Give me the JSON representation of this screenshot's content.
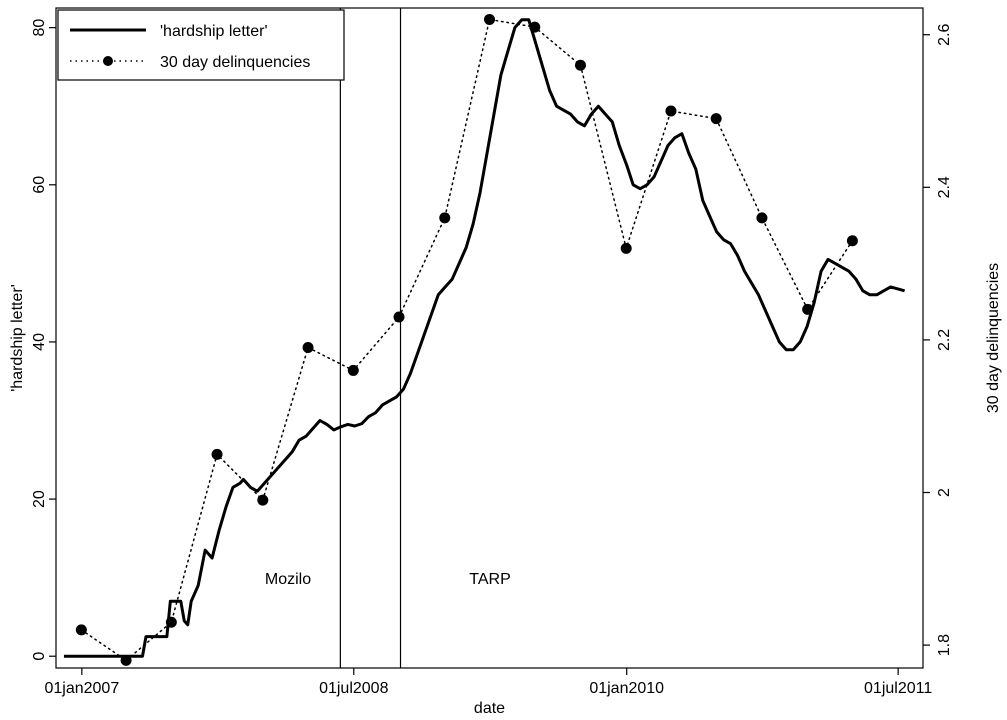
{
  "chart_data": {
    "type": "line",
    "title": "",
    "xlabel": "date",
    "ylabel_left": "'hardship letter'",
    "ylabel_right": "30 day delinquencies",
    "x_ticks": [
      {
        "label": "01jan2007",
        "date": "2007-01-01"
      },
      {
        "label": "01jul2008",
        "date": "2008-07-01"
      },
      {
        "label": "01jan2010",
        "date": "2010-01-01"
      },
      {
        "label": "01jul2011",
        "date": "2011-07-01"
      }
    ],
    "xlim": [
      "2006-11-10",
      "2011-08-20"
    ],
    "ylim_left": [
      -1.5,
      82.5
    ],
    "ylim_right": [
      1.77,
      2.635
    ],
    "y_left_ticks": [
      "0",
      "20",
      "40",
      "60",
      "80"
    ],
    "y_right_ticks": [
      "1.8",
      "2",
      "2.2",
      "2.4",
      "2.6"
    ],
    "legend_position": "top-left",
    "grid": false,
    "annotations": [
      {
        "label": "Mozilo",
        "date": "2008-06-04"
      },
      {
        "label": "TARP",
        "date": "2008-10-03"
      }
    ],
    "series": [
      {
        "name": "'hardship letter'",
        "axis": "left",
        "style": "solid",
        "color": "#000000",
        "points": [
          [
            "2006-11-26",
            0
          ],
          [
            "2007-01-01",
            0
          ],
          [
            "2007-03-01",
            0
          ],
          [
            "2007-05-03",
            0
          ],
          [
            "2007-05-10",
            2.5
          ],
          [
            "2007-06-21",
            2.5
          ],
          [
            "2007-06-28",
            7
          ],
          [
            "2007-07-19",
            7
          ],
          [
            "2007-07-26",
            4.5
          ],
          [
            "2007-08-02",
            4
          ],
          [
            "2007-08-09",
            7
          ],
          [
            "2007-08-23",
            9
          ],
          [
            "2007-09-06",
            13.5
          ],
          [
            "2007-09-20",
            12.5
          ],
          [
            "2007-10-04",
            16
          ],
          [
            "2007-10-18",
            19
          ],
          [
            "2007-11-01",
            21.5
          ],
          [
            "2007-11-15",
            22
          ],
          [
            "2007-11-22",
            22.5
          ],
          [
            "2007-12-06",
            21.5
          ],
          [
            "2007-12-20",
            21
          ],
          [
            "2008-01-03",
            22
          ],
          [
            "2008-01-17",
            23
          ],
          [
            "2008-01-31",
            24
          ],
          [
            "2008-02-14",
            25
          ],
          [
            "2008-02-28",
            26
          ],
          [
            "2008-03-13",
            27.5
          ],
          [
            "2008-03-27",
            28
          ],
          [
            "2008-04-10",
            29
          ],
          [
            "2008-04-24",
            30
          ],
          [
            "2008-05-08",
            29.5
          ],
          [
            "2008-05-22",
            28.8
          ],
          [
            "2008-06-05",
            29.2
          ],
          [
            "2008-06-19",
            29.5
          ],
          [
            "2008-07-03",
            29.3
          ],
          [
            "2008-07-17",
            29.6
          ],
          [
            "2008-07-31",
            30.5
          ],
          [
            "2008-08-14",
            31
          ],
          [
            "2008-08-28",
            32
          ],
          [
            "2008-09-11",
            32.5
          ],
          [
            "2008-09-25",
            33
          ],
          [
            "2008-10-09",
            34
          ],
          [
            "2008-10-23",
            36
          ],
          [
            "2008-11-06",
            38.5
          ],
          [
            "2008-11-20",
            41
          ],
          [
            "2008-12-04",
            43.5
          ],
          [
            "2008-12-18",
            46
          ],
          [
            "2009-01-01",
            47
          ],
          [
            "2009-01-15",
            48
          ],
          [
            "2009-01-29",
            50
          ],
          [
            "2009-02-12",
            52
          ],
          [
            "2009-02-26",
            55
          ],
          [
            "2009-03-12",
            59
          ],
          [
            "2009-03-26",
            64
          ],
          [
            "2009-04-09",
            69
          ],
          [
            "2009-04-23",
            74
          ],
          [
            "2009-05-07",
            77
          ],
          [
            "2009-05-21",
            80
          ],
          [
            "2009-06-04",
            81
          ],
          [
            "2009-06-18",
            81
          ],
          [
            "2009-07-02",
            78
          ],
          [
            "2009-07-16",
            75
          ],
          [
            "2009-07-30",
            72
          ],
          [
            "2009-08-13",
            70
          ],
          [
            "2009-08-27",
            69.5
          ],
          [
            "2009-09-10",
            69
          ],
          [
            "2009-09-24",
            68
          ],
          [
            "2009-10-08",
            67.5
          ],
          [
            "2009-10-22",
            69
          ],
          [
            "2009-11-05",
            70
          ],
          [
            "2009-11-19",
            69
          ],
          [
            "2009-12-03",
            68
          ],
          [
            "2009-12-17",
            65
          ],
          [
            "2010-01-01",
            62.5
          ],
          [
            "2010-01-14",
            60
          ],
          [
            "2010-01-28",
            59.5
          ],
          [
            "2010-02-11",
            60
          ],
          [
            "2010-02-25",
            61
          ],
          [
            "2010-03-11",
            63
          ],
          [
            "2010-03-25",
            65
          ],
          [
            "2010-04-08",
            66
          ],
          [
            "2010-04-22",
            66.5
          ],
          [
            "2010-05-06",
            64
          ],
          [
            "2010-05-20",
            62
          ],
          [
            "2010-06-03",
            58
          ],
          [
            "2010-06-17",
            56
          ],
          [
            "2010-07-01",
            54
          ],
          [
            "2010-07-15",
            53
          ],
          [
            "2010-07-29",
            52.5
          ],
          [
            "2010-08-12",
            51
          ],
          [
            "2010-08-26",
            49
          ],
          [
            "2010-09-09",
            47.5
          ],
          [
            "2010-09-23",
            46
          ],
          [
            "2010-10-07",
            44
          ],
          [
            "2010-10-21",
            42
          ],
          [
            "2010-11-04",
            40
          ],
          [
            "2010-11-18",
            39
          ],
          [
            "2010-12-02",
            39
          ],
          [
            "2010-12-16",
            40
          ],
          [
            "2010-12-30",
            42
          ],
          [
            "2011-01-13",
            45
          ],
          [
            "2011-01-27",
            49
          ],
          [
            "2011-02-10",
            50.5
          ],
          [
            "2011-02-24",
            50
          ],
          [
            "2011-03-10",
            49.5
          ],
          [
            "2011-03-24",
            49
          ],
          [
            "2011-04-07",
            48
          ],
          [
            "2011-04-21",
            46.5
          ],
          [
            "2011-05-05",
            46
          ],
          [
            "2011-05-19",
            46
          ],
          [
            "2011-06-02",
            46.5
          ],
          [
            "2011-06-16",
            47
          ],
          [
            "2011-07-14",
            46.5
          ]
        ]
      },
      {
        "name": "30 day delinquencies",
        "axis": "right",
        "style": "dotted-with-markers",
        "color": "#000000",
        "points": [
          [
            "2006-12-31",
            1.82
          ],
          [
            "2007-03-31",
            1.78
          ],
          [
            "2007-06-30",
            1.83
          ],
          [
            "2007-09-30",
            2.05
          ],
          [
            "2007-12-31",
            1.99
          ],
          [
            "2008-03-31",
            2.19
          ],
          [
            "2008-06-30",
            2.16
          ],
          [
            "2008-09-30",
            2.23
          ],
          [
            "2008-12-31",
            2.36
          ],
          [
            "2009-03-31",
            2.62
          ],
          [
            "2009-06-30",
            2.61
          ],
          [
            "2009-09-30",
            2.56
          ],
          [
            "2009-12-31",
            2.32
          ],
          [
            "2010-03-31",
            2.5
          ],
          [
            "2010-06-30",
            2.49
          ],
          [
            "2010-09-30",
            2.36
          ],
          [
            "2010-12-31",
            2.24
          ],
          [
            "2011-03-31",
            2.33
          ]
        ]
      }
    ]
  }
}
